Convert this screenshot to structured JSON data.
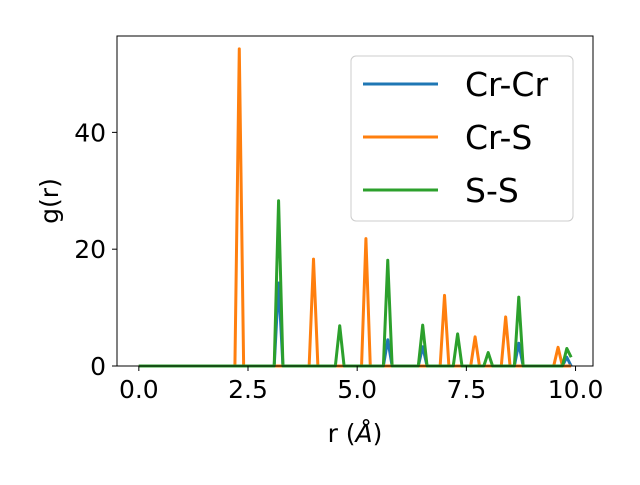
{
  "chart_data": {
    "type": "line",
    "xlabel_prefix": "r (",
    "xlabel_unit": "Å",
    "xlabel_suffix": ")",
    "ylabel": "g(r)",
    "xlim": [
      -0.5,
      10.4
    ],
    "ylim": [
      0,
      56.5
    ],
    "xticks": [
      0,
      2.5,
      5,
      7.5,
      10
    ],
    "xtick_labels": [
      "0.0",
      "2.5",
      "5.0",
      "7.5",
      "10.0"
    ],
    "yticks": [
      0,
      20,
      40
    ],
    "ytick_labels": [
      "0",
      "20",
      "40"
    ],
    "grid": false,
    "legend_position": "top-right",
    "series": [
      {
        "name": "Cr-Cr",
        "color": "#1f77b4",
        "x": [
          0,
          3.1,
          3.2,
          3.3,
          5.6,
          5.7,
          5.8,
          6.4,
          6.5,
          6.6,
          8.6,
          8.7,
          8.8,
          9.7,
          9.8,
          9.9
        ],
        "y": [
          0,
          0,
          14.2,
          0,
          0,
          4.5,
          0,
          0,
          3.3,
          0,
          0,
          3.9,
          0,
          0,
          1.5,
          0
        ]
      },
      {
        "name": "Cr-S",
        "color": "#ff7f0e",
        "x": [
          0,
          2.2,
          2.3,
          2.4,
          3.9,
          4.0,
          4.1,
          5.1,
          5.2,
          5.3,
          6.9,
          7.0,
          7.1,
          7.6,
          7.7,
          7.8,
          8.3,
          8.4,
          8.5,
          9.5,
          9.6,
          9.7,
          9.9
        ],
        "y": [
          0,
          0,
          54.3,
          0,
          0,
          18.3,
          0,
          0,
          21.8,
          0,
          0,
          12.1,
          0,
          0,
          5.0,
          0,
          0,
          8.4,
          0,
          0,
          3.2,
          0,
          0
        ]
      },
      {
        "name": "S-S",
        "color": "#2ca02c",
        "x": [
          0,
          3.1,
          3.2,
          3.3,
          4.5,
          4.6,
          4.7,
          5.6,
          5.7,
          5.8,
          6.4,
          6.5,
          6.6,
          7.2,
          7.3,
          7.4,
          7.9,
          8.0,
          8.1,
          8.6,
          8.7,
          8.8,
          9.7,
          9.8,
          9.9
        ],
        "y": [
          0,
          0,
          28.3,
          0,
          0,
          6.9,
          0,
          0,
          18.1,
          0,
          0,
          7.0,
          0,
          0,
          5.5,
          0,
          0,
          2.3,
          0,
          0,
          11.8,
          0,
          0,
          3.0,
          1.5
        ]
      }
    ]
  }
}
